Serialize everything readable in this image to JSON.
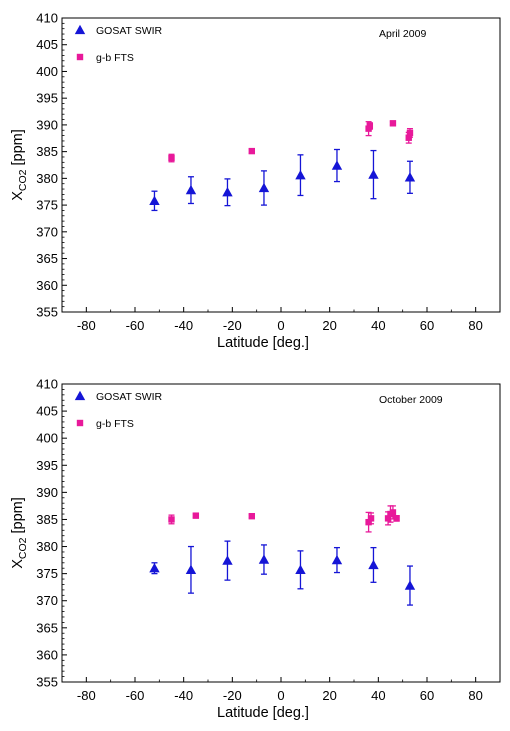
{
  "chart_data": [
    {
      "type": "scatter",
      "annotation": "April 2009",
      "xlabel": "Latitude [deg.]",
      "ylabel": {
        "base": "X",
        "sub": "CO2",
        "unit": " [ppm]"
      },
      "xlim": [
        -90,
        90
      ],
      "ylim": [
        355,
        410
      ],
      "xticks": [
        -80,
        -60,
        -40,
        -20,
        0,
        20,
        40,
        60,
        80
      ],
      "yticks": [
        355,
        360,
        365,
        370,
        375,
        380,
        385,
        390,
        395,
        400,
        405,
        410
      ],
      "grid": false,
      "legend_position": "top-left",
      "series": [
        {
          "name": "GOSAT SWIR",
          "marker": "triangle",
          "color": "#1515d6",
          "points": [
            {
              "x": -52,
              "y": 375.8,
              "err": 1.8
            },
            {
              "x": -37,
              "y": 377.8,
              "err": 2.5
            },
            {
              "x": -22,
              "y": 377.4,
              "err": 2.5
            },
            {
              "x": -7,
              "y": 378.2,
              "err": 3.2
            },
            {
              "x": 8,
              "y": 380.6,
              "err": 3.8
            },
            {
              "x": 23,
              "y": 382.4,
              "err": 3.0
            },
            {
              "x": 38,
              "y": 380.7,
              "err": 4.5
            },
            {
              "x": 53,
              "y": 380.2,
              "err": 3.0
            }
          ]
        },
        {
          "name": "g-b FTS",
          "marker": "square",
          "color": "#e8199a",
          "points": [
            {
              "x": -45,
              "y": 383.8,
              "err": 0.7
            },
            {
              "x": -12,
              "y": 385.1,
              "err": 0.4
            },
            {
              "x": 36,
              "y": 389.3,
              "err": 1.3
            },
            {
              "x": 36.5,
              "y": 389.8,
              "err": 0.6
            },
            {
              "x": 46,
              "y": 390.3,
              "err": 0.3
            },
            {
              "x": 52.5,
              "y": 387.6,
              "err": 1.0
            },
            {
              "x": 53,
              "y": 388.5,
              "err": 0.8
            }
          ]
        }
      ]
    },
    {
      "type": "scatter",
      "annotation": "October 2009",
      "xlabel": "Latitude [deg.]",
      "ylabel": {
        "base": "X",
        "sub": "CO2",
        "unit": " [ppm]"
      },
      "xlim": [
        -90,
        90
      ],
      "ylim": [
        355,
        410
      ],
      "xticks": [
        -80,
        -60,
        -40,
        -20,
        0,
        20,
        40,
        60,
        80
      ],
      "yticks": [
        355,
        360,
        365,
        370,
        375,
        380,
        385,
        390,
        395,
        400,
        405,
        410
      ],
      "grid": false,
      "legend_position": "top-left",
      "series": [
        {
          "name": "GOSAT SWIR",
          "marker": "triangle",
          "color": "#1515d6",
          "points": [
            {
              "x": -52,
              "y": 376.0,
              "err": 1.0
            },
            {
              "x": -37,
              "y": 375.7,
              "err": 4.3
            },
            {
              "x": -22,
              "y": 377.4,
              "err": 3.6
            },
            {
              "x": -7,
              "y": 377.6,
              "err": 2.7
            },
            {
              "x": 8,
              "y": 375.7,
              "err": 3.5
            },
            {
              "x": 23,
              "y": 377.5,
              "err": 2.3
            },
            {
              "x": 38,
              "y": 376.6,
              "err": 3.2
            },
            {
              "x": 53,
              "y": 372.8,
              "err": 3.6
            }
          ]
        },
        {
          "name": "g-b FTS",
          "marker": "square",
          "color": "#e8199a",
          "points": [
            {
              "x": -45,
              "y": 385.0,
              "err": 0.8
            },
            {
              "x": -35,
              "y": 385.7,
              "err": 0.3
            },
            {
              "x": -12,
              "y": 385.6,
              "err": 0.3
            },
            {
              "x": 36,
              "y": 384.5,
              "err": 1.8
            },
            {
              "x": 37,
              "y": 385.2,
              "err": 1.0
            },
            {
              "x": 44,
              "y": 385.2,
              "err": 1.2
            },
            {
              "x": 45,
              "y": 386.0,
              "err": 1.5
            },
            {
              "x": 46,
              "y": 386.3,
              "err": 1.2
            },
            {
              "x": 47.5,
              "y": 385.2,
              "err": 0.5
            }
          ]
        }
      ]
    }
  ]
}
